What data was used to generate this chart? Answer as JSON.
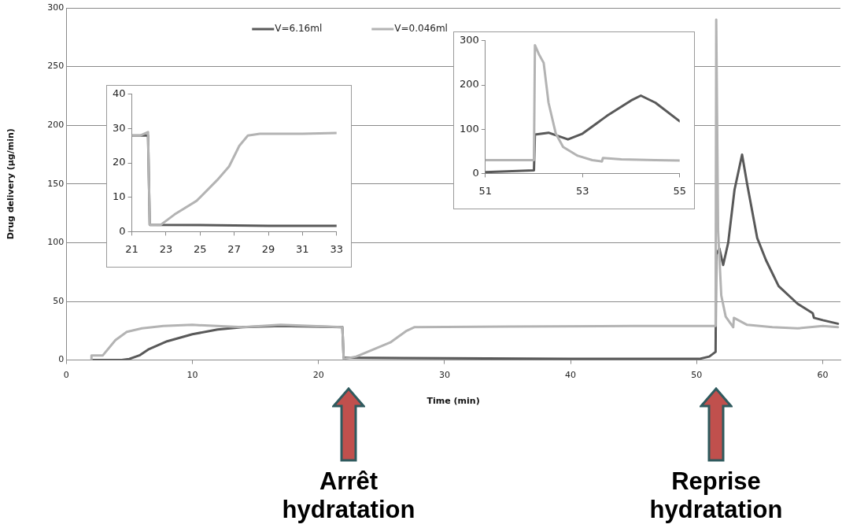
{
  "chart_data": [
    {
      "type": "line",
      "xlabel": "Time (min)",
      "ylabel": "Drug delivery (µg/min)",
      "xlim": [
        0,
        61.4
      ],
      "xticks": [
        0,
        10,
        20,
        30,
        40,
        50,
        60
      ],
      "ylim": [
        0,
        300
      ],
      "yticks": [
        0,
        50,
        100,
        150,
        200,
        250,
        300
      ],
      "grid": "y",
      "legend": "top",
      "marker": "none",
      "line_style": "solid",
      "annotations": [
        "Arrêt hydratation",
        "Reprise hydratation"
      ],
      "series": [
        {
          "name": "V=6.16ml",
          "color": "#595959",
          "x": [
            2,
            4.4,
            5,
            5.8,
            6.5,
            8,
            10,
            12,
            14,
            17,
            21.9,
            22,
            30,
            40,
            50.2,
            51,
            51.5,
            51.55,
            51.8,
            52.1,
            52.5,
            53,
            53.6,
            54,
            54.8,
            55.5,
            56.5,
            58,
            59.2,
            59.3,
            60,
            61.2
          ],
          "values": [
            0,
            0,
            1,
            4,
            9,
            16,
            22,
            26,
            28,
            29,
            28,
            2,
            1.5,
            1,
            1,
            3,
            7,
            90,
            95,
            81,
            100,
            145,
            175,
            150,
            104,
            85,
            63,
            48,
            40,
            36,
            34,
            31
          ]
        },
        {
          "name": "V=0.046ml",
          "color": "#b3b3b3",
          "x": [
            2,
            2,
            2.9,
            3.9,
            4.8,
            6,
            7.7,
            10,
            14,
            17,
            21.9,
            22,
            23,
            25.7,
            27,
            27.6,
            35,
            45,
            51.5,
            51.55,
            51.7,
            51.95,
            52.3,
            52.9,
            52.95,
            54,
            56,
            58,
            60,
            61.2
          ],
          "values": [
            0,
            4,
            4,
            17,
            24,
            27,
            29,
            30,
            28,
            30,
            28,
            1,
            3,
            15,
            25,
            28,
            28.5,
            29,
            29,
            290,
            110,
            55,
            37,
            28,
            36,
            30,
            28,
            27,
            29,
            28
          ]
        }
      ]
    },
    {
      "type": "line",
      "xlim": [
        21,
        33
      ],
      "xticks": [
        21,
        23,
        25,
        27,
        29,
        31,
        33
      ],
      "ylim": [
        0,
        40
      ],
      "yticks": [
        0,
        10,
        20,
        30,
        40
      ],
      "marker": "none",
      "line_style": "solid",
      "series": [
        {
          "color": "#595959",
          "x": [
            21,
            21.95,
            22.05,
            25,
            29,
            33
          ],
          "values": [
            28,
            28,
            2,
            1.9,
            1.7,
            1.7
          ]
        },
        {
          "color": "#b3b3b3",
          "x": [
            21,
            21.5,
            21.95,
            22.05,
            22.7,
            23.5,
            24.8,
            26,
            26.7,
            27.3,
            27.8,
            28.5,
            31,
            33
          ],
          "values": [
            28,
            28,
            29,
            2,
            2,
            5,
            9,
            15,
            19,
            25,
            28,
            28.5,
            28.5,
            28.7
          ]
        }
      ]
    },
    {
      "type": "line",
      "xlim": [
        51,
        55
      ],
      "xticks": [
        51,
        53,
        55
      ],
      "ylim": [
        0,
        300
      ],
      "yticks": [
        0,
        100,
        200,
        300
      ],
      "marker": "none",
      "line_style": "solid",
      "series": [
        {
          "color": "#595959",
          "x": [
            51,
            52,
            52.02,
            52.3,
            52.7,
            53,
            53.5,
            54,
            54.2,
            54.5,
            55
          ],
          "values": [
            3,
            7,
            88,
            92,
            77,
            90,
            130,
            165,
            176,
            160,
            118
          ]
        },
        {
          "color": "#b3b3b3",
          "x": [
            51,
            52,
            52.02,
            52.1,
            52.2,
            52.3,
            52.45,
            52.6,
            52.9,
            53.2,
            53.4,
            53.42,
            53.8,
            54.5,
            55
          ],
          "values": [
            30,
            30,
            290,
            270,
            250,
            160,
            90,
            60,
            40,
            30,
            27,
            35,
            32,
            30,
            29
          ]
        }
      ]
    }
  ]
}
